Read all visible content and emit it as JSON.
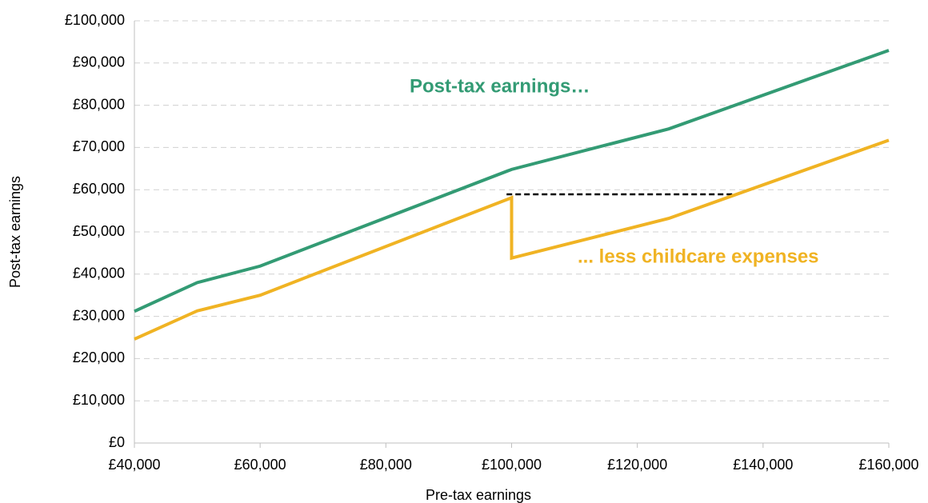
{
  "chart_data": {
    "type": "line",
    "xlabel": "Pre-tax earnings",
    "ylabel": "Post-tax earnings",
    "xlim": [
      40000,
      160000
    ],
    "ylim": [
      0,
      100000
    ],
    "xticks": [
      {
        "value": 40000,
        "label": "£40,000"
      },
      {
        "value": 60000,
        "label": "£60,000"
      },
      {
        "value": 80000,
        "label": "£80,000"
      },
      {
        "value": 100000,
        "label": "£100,000"
      },
      {
        "value": 120000,
        "label": "£120,000"
      },
      {
        "value": 140000,
        "label": "£140,000"
      },
      {
        "value": 160000,
        "label": "£160,000"
      }
    ],
    "yticks": [
      {
        "value": 0,
        "label": "£0"
      },
      {
        "value": 10000,
        "label": "£10,000"
      },
      {
        "value": 20000,
        "label": "£20,000"
      },
      {
        "value": 30000,
        "label": "£30,000"
      },
      {
        "value": 40000,
        "label": "£40,000"
      },
      {
        "value": 50000,
        "label": "£50,000"
      },
      {
        "value": 60000,
        "label": "£60,000"
      },
      {
        "value": 70000,
        "label": "£70,000"
      },
      {
        "value": 80000,
        "label": "£80,000"
      },
      {
        "value": 90000,
        "label": "£90,000"
      },
      {
        "value": 100000,
        "label": "£100,000"
      }
    ],
    "grid": true,
    "series": [
      {
        "name": "Post-tax earnings…",
        "color": "#339b74",
        "x": [
          40000,
          50000,
          60000,
          100000,
          125000,
          160000
        ],
        "values": [
          31200,
          38000,
          41900,
          64800,
          74400,
          93000
        ]
      },
      {
        "name": "... less childcare expenses",
        "color": "#f0b323",
        "x": [
          40000,
          50000,
          60000,
          100000,
          100000,
          125000,
          160000
        ],
        "values": [
          24600,
          31300,
          35000,
          58100,
          43800,
          53200,
          71700
        ]
      }
    ],
    "reference_line": {
      "x": [
        99200,
        135700
      ],
      "y": 58900,
      "color": "#000000"
    }
  }
}
